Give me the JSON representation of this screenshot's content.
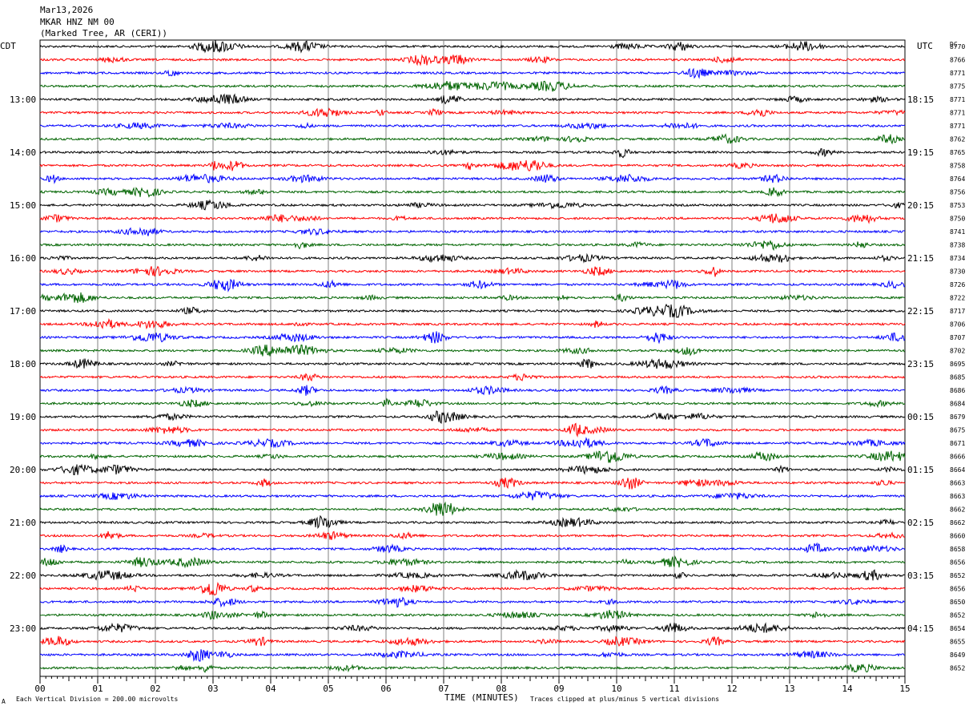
{
  "header": {
    "date": "Mar13,2026",
    "station": "MKAR HNZ NM 00",
    "location": "(Marked Tree, AR (CERI))",
    "left_tz": "CDT",
    "right_tz": "UTC",
    "dc_label": "DC"
  },
  "footer": {
    "scale_note": "Each Vertical Division =  200.00 microvolts",
    "clip_note": "Traces clipped at plus/minus 5 vertical divisions",
    "corner_mark": "A"
  },
  "colors": {
    "trace_cycle": [
      "#000000",
      "#ff0000",
      "#0000ff",
      "#006400"
    ],
    "grid": "#808080"
  },
  "chart_data": {
    "type": "line",
    "title": "",
    "xlabel": "TIME (MINUTES)",
    "ylabel": "",
    "xlim": [
      0,
      15
    ],
    "x_ticks": [
      "00",
      "01",
      "02",
      "03",
      "04",
      "05",
      "06",
      "07",
      "08",
      "09",
      "10",
      "11",
      "12",
      "13",
      "14",
      "15"
    ],
    "grid": true,
    "clip_divisions": 5,
    "microvolts_per_division": 200.0,
    "left_hour_labels": [
      "13:00",
      "14:00",
      "15:00",
      "16:00",
      "17:00",
      "18:00",
      "19:00",
      "20:00",
      "21:00",
      "22:00",
      "23:00"
    ],
    "right_hour_labels": [
      "18:15",
      "19:15",
      "20:15",
      "21:15",
      "22:15",
      "23:15",
      "00:15",
      "01:15",
      "02:15",
      "03:15",
      "04:15"
    ],
    "dc_offsets": [
      "8770",
      "8766",
      "8771",
      "8775",
      "8771",
      "8771",
      "8771",
      "8762",
      "8765",
      "8758",
      "8764",
      "8756",
      "8753",
      "8750",
      "8741",
      "8738",
      "8734",
      "8730",
      "8726",
      "8722",
      "8717",
      "8706",
      "8707",
      "8702",
      "8695",
      "8685",
      "8686",
      "8684",
      "8679",
      "8675",
      "8671",
      "8666",
      "8664",
      "8663",
      "8663",
      "8662",
      "8662",
      "8660",
      "8658",
      "8656",
      "8652",
      "8656",
      "8650",
      "8652",
      "8654",
      "8655",
      "8649",
      "8652"
    ]
  }
}
